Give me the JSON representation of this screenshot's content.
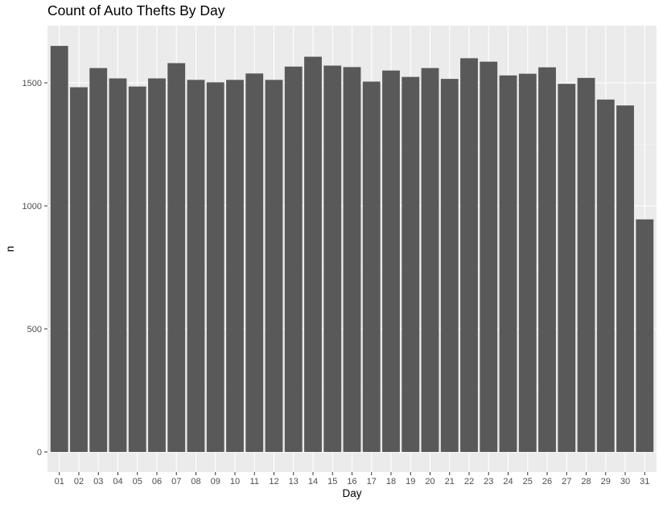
{
  "chart_data": {
    "type": "bar",
    "title": "Count of Auto Thefts By Day",
    "xlabel": "Day",
    "ylabel": "n",
    "categories": [
      "01",
      "02",
      "03",
      "04",
      "05",
      "06",
      "07",
      "08",
      "09",
      "10",
      "11",
      "12",
      "13",
      "14",
      "15",
      "16",
      "17",
      "18",
      "19",
      "20",
      "21",
      "22",
      "23",
      "24",
      "25",
      "26",
      "27",
      "28",
      "29",
      "30",
      "31"
    ],
    "values": [
      1650,
      1482,
      1560,
      1518,
      1485,
      1518,
      1580,
      1512,
      1502,
      1512,
      1538,
      1512,
      1566,
      1606,
      1570,
      1564,
      1505,
      1550,
      1524,
      1560,
      1516,
      1600,
      1586,
      1530,
      1537,
      1563,
      1496,
      1520,
      1432,
      1408,
      945
    ],
    "ylim": [
      0,
      1700
    ],
    "yticks": [
      0,
      500,
      1000,
      1500
    ],
    "grid": true,
    "colors": {
      "bar": "#595959",
      "panel": "#ebebeb",
      "grid_major": "#ffffff",
      "grid_minor": "#f5f5f5",
      "tick_text": "#4d4d4d"
    }
  }
}
